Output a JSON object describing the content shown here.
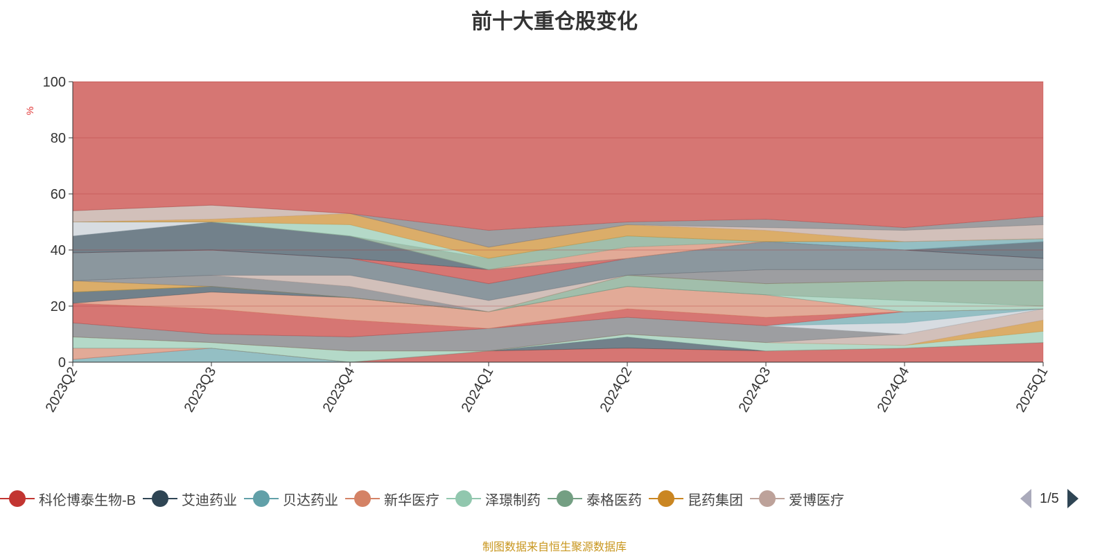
{
  "title": "前十大重仓股变化",
  "source": "制图数据来自恒生聚源数据库",
  "legend": {
    "items": [
      {
        "name": "科伦博泰生物-B",
        "color": "#c23531"
      },
      {
        "name": "艾迪药业",
        "color": "#2f4554"
      },
      {
        "name": "贝达药业",
        "color": "#61a0a8"
      },
      {
        "name": "新华医疗",
        "color": "#d48265"
      },
      {
        "name": "泽璟制药",
        "color": "#91c7ae"
      },
      {
        "name": "泰格医药",
        "color": "#749f83"
      },
      {
        "name": "昆药集团",
        "color": "#ca8622"
      },
      {
        "name": "爱博医疗",
        "color": "#bda29a"
      }
    ],
    "page": "1/5"
  },
  "chart_data": {
    "type": "area",
    "stacked": true,
    "title": "前十大重仓股变化",
    "ylabel": "%",
    "ylim": [
      0,
      100
    ],
    "yticks": [
      "0",
      "20",
      "40",
      "60",
      "80",
      "100"
    ],
    "categories": [
      "2023Q2",
      "2023Q3",
      "2023Q4",
      "2024Q1",
      "2024Q2",
      "2024Q3",
      "2024Q4",
      "2025Q1"
    ],
    "layers": [
      {
        "color": "#61a0a8",
        "values": [
          1,
          5,
          0,
          0,
          0,
          0,
          0,
          0
        ]
      },
      {
        "color": "#c23531",
        "values": [
          0,
          0,
          0,
          4,
          5,
          4,
          5,
          7
        ]
      },
      {
        "color": "#d48265",
        "values": [
          4,
          0,
          0,
          0,
          0,
          0,
          0,
          0
        ]
      },
      {
        "color": "#2f4554",
        "values": [
          0,
          0,
          0,
          0,
          4,
          0,
          0,
          0
        ]
      },
      {
        "color": "#91c7ae",
        "values": [
          4,
          2,
          4,
          0,
          1,
          3,
          1,
          4
        ]
      },
      {
        "color": "#ca8622",
        "values": [
          0,
          0,
          0,
          0,
          0,
          0,
          0,
          4
        ]
      },
      {
        "color": "#bda29a",
        "values": [
          0,
          0,
          0,
          0,
          0,
          0,
          4,
          4
        ]
      },
      {
        "color": "#6e7074",
        "values": [
          5,
          3,
          5,
          8,
          6,
          6,
          0,
          0
        ]
      },
      {
        "color": "#c4ccd3",
        "values": [
          0,
          0,
          0,
          0,
          0,
          0,
          4,
          0
        ]
      },
      {
        "color": "#61a0a8",
        "values": [
          0,
          0,
          0,
          0,
          0,
          0,
          4,
          0
        ]
      },
      {
        "color": "#c23531",
        "values": [
          7,
          9,
          6,
          0,
          3,
          3,
          0,
          0
        ]
      },
      {
        "color": "#d48265",
        "values": [
          0,
          6,
          8,
          6,
          8,
          8,
          0,
          0
        ]
      },
      {
        "color": "#2f4554",
        "values": [
          4,
          2,
          0,
          0,
          0,
          0,
          0,
          0
        ]
      },
      {
        "color": "#91c7ae",
        "values": [
          0,
          0,
          0,
          0,
          0,
          0,
          4,
          1
        ]
      },
      {
        "color": "#749f83",
        "values": [
          0,
          0,
          0,
          0,
          4,
          4,
          7,
          9
        ]
      },
      {
        "color": "#ca8622",
        "values": [
          4,
          0,
          0,
          0,
          0,
          0,
          0,
          0
        ]
      },
      {
        "color": "#6e7074",
        "values": [
          0,
          4,
          4,
          0,
          0,
          5,
          4,
          4
        ]
      },
      {
        "color": "#bda29a",
        "values": [
          0,
          0,
          4,
          4,
          0,
          0,
          0,
          0
        ]
      },
      {
        "color": "#546570",
        "values": [
          10,
          9,
          6,
          6,
          6,
          10,
          7,
          4
        ]
      },
      {
        "color": "#c23531",
        "values": [
          0,
          0,
          0,
          5,
          0,
          0,
          0,
          0
        ]
      },
      {
        "color": "#2f4554",
        "values": [
          6,
          10,
          8,
          0,
          0,
          0,
          0,
          6
        ]
      },
      {
        "color": "#c4ccd3",
        "values": [
          5,
          0,
          0,
          0,
          0,
          0,
          0,
          0
        ]
      },
      {
        "color": "#61a0a8",
        "values": [
          0,
          0,
          0,
          0,
          0,
          0,
          3,
          1
        ]
      },
      {
        "color": "#d48265",
        "values": [
          0,
          0,
          0,
          0,
          4,
          0,
          0,
          0
        ]
      },
      {
        "color": "#749f83",
        "values": [
          0,
          0,
          0,
          4,
          4,
          0,
          0,
          0
        ]
      },
      {
        "color": "#91c7ae",
        "values": [
          0,
          0,
          4,
          0,
          0,
          0,
          0,
          0
        ]
      },
      {
        "color": "#ca8622",
        "values": [
          0,
          1,
          4,
          4,
          4,
          4,
          0,
          0
        ]
      },
      {
        "color": "#bda29a",
        "values": [
          4,
          5,
          0,
          0,
          0,
          1,
          4,
          5
        ]
      },
      {
        "color": "#6e7074",
        "values": [
          0,
          0,
          0,
          6,
          1,
          3,
          1,
          3
        ]
      },
      {
        "color": "#c23531",
        "values": "remainder-to-100"
      }
    ]
  }
}
